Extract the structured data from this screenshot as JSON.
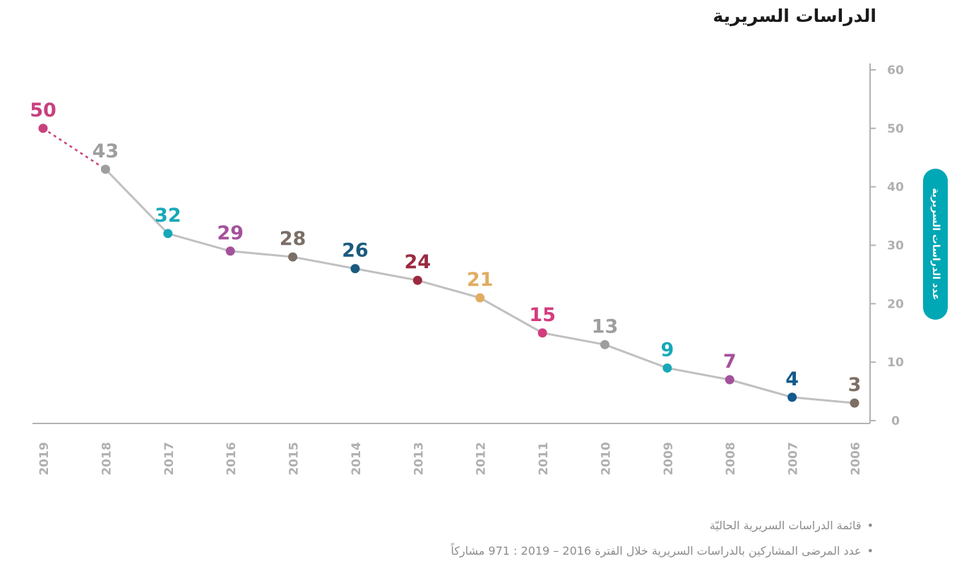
{
  "title": "الدراسات السريرية",
  "chart_data": {
    "type": "line",
    "title": "الدراسات السريرية",
    "ylabel": "عدد الدراسات السريرية",
    "xlabel": "",
    "ylim": [
      0,
      60
    ],
    "yticks": [
      0,
      10,
      20,
      30,
      40,
      50,
      60
    ],
    "grid": false,
    "x": [
      "2019",
      "2018",
      "2017",
      "2016",
      "2015",
      "2014",
      "2013",
      "2012",
      "2011",
      "2010",
      "2009",
      "2008",
      "2007",
      "2006"
    ],
    "values": [
      50,
      43,
      32,
      29,
      28,
      26,
      24,
      21,
      15,
      13,
      9,
      7,
      4,
      3
    ],
    "series": [
      {
        "name": "عدد الدراسات السريرية",
        "values": [
          50,
          43,
          32,
          29,
          28,
          26,
          24,
          21,
          15,
          13,
          9,
          7,
          4,
          3
        ]
      }
    ],
    "dashed_segment": [
      "2019",
      "2018"
    ],
    "point_colors": [
      "#c8407e",
      "#9e9e9e",
      "#17a8b8",
      "#a4519b",
      "#7a6e66",
      "#1b5a80",
      "#9b2a3f",
      "#e0ac62",
      "#d33c7e",
      "#9e9e9e",
      "#17a8b8",
      "#a4519b",
      "#125a8c",
      "#7d6f64"
    ],
    "line_color": "#c0c0c0",
    "dashed_color": "#c8407e"
  },
  "notes": [
    "قائمة الدراسات السريرية الحاليّة",
    "عدد المرضى المشاركين بالدراسات السريرية خلال الفترة 2016 – 2019 : 971 مشاركاً"
  ],
  "bullet": "•"
}
